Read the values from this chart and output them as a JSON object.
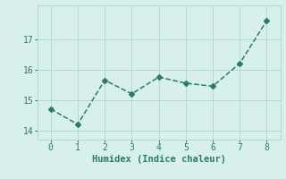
{
  "x": [
    0,
    1,
    2,
    3,
    4,
    5,
    6,
    7,
    8
  ],
  "y": [
    14.7,
    14.2,
    15.65,
    15.2,
    15.75,
    15.55,
    15.45,
    16.2,
    17.6
  ],
  "line_color": "#2a7a6e",
  "bg_color": "#d8f0ec",
  "grid_color": "#b5d9d4",
  "xlabel": "Humidex (Indice chaleur)",
  "ylim": [
    13.7,
    18.1
  ],
  "xlim": [
    -0.5,
    8.5
  ],
  "yticks": [
    14,
    15,
    16,
    17
  ],
  "xticks": [
    0,
    1,
    2,
    3,
    4,
    5,
    6,
    7,
    8
  ],
  "font_color": "#2a7a6e",
  "marker": "D",
  "markersize": 3.0,
  "linewidth": 1.1
}
